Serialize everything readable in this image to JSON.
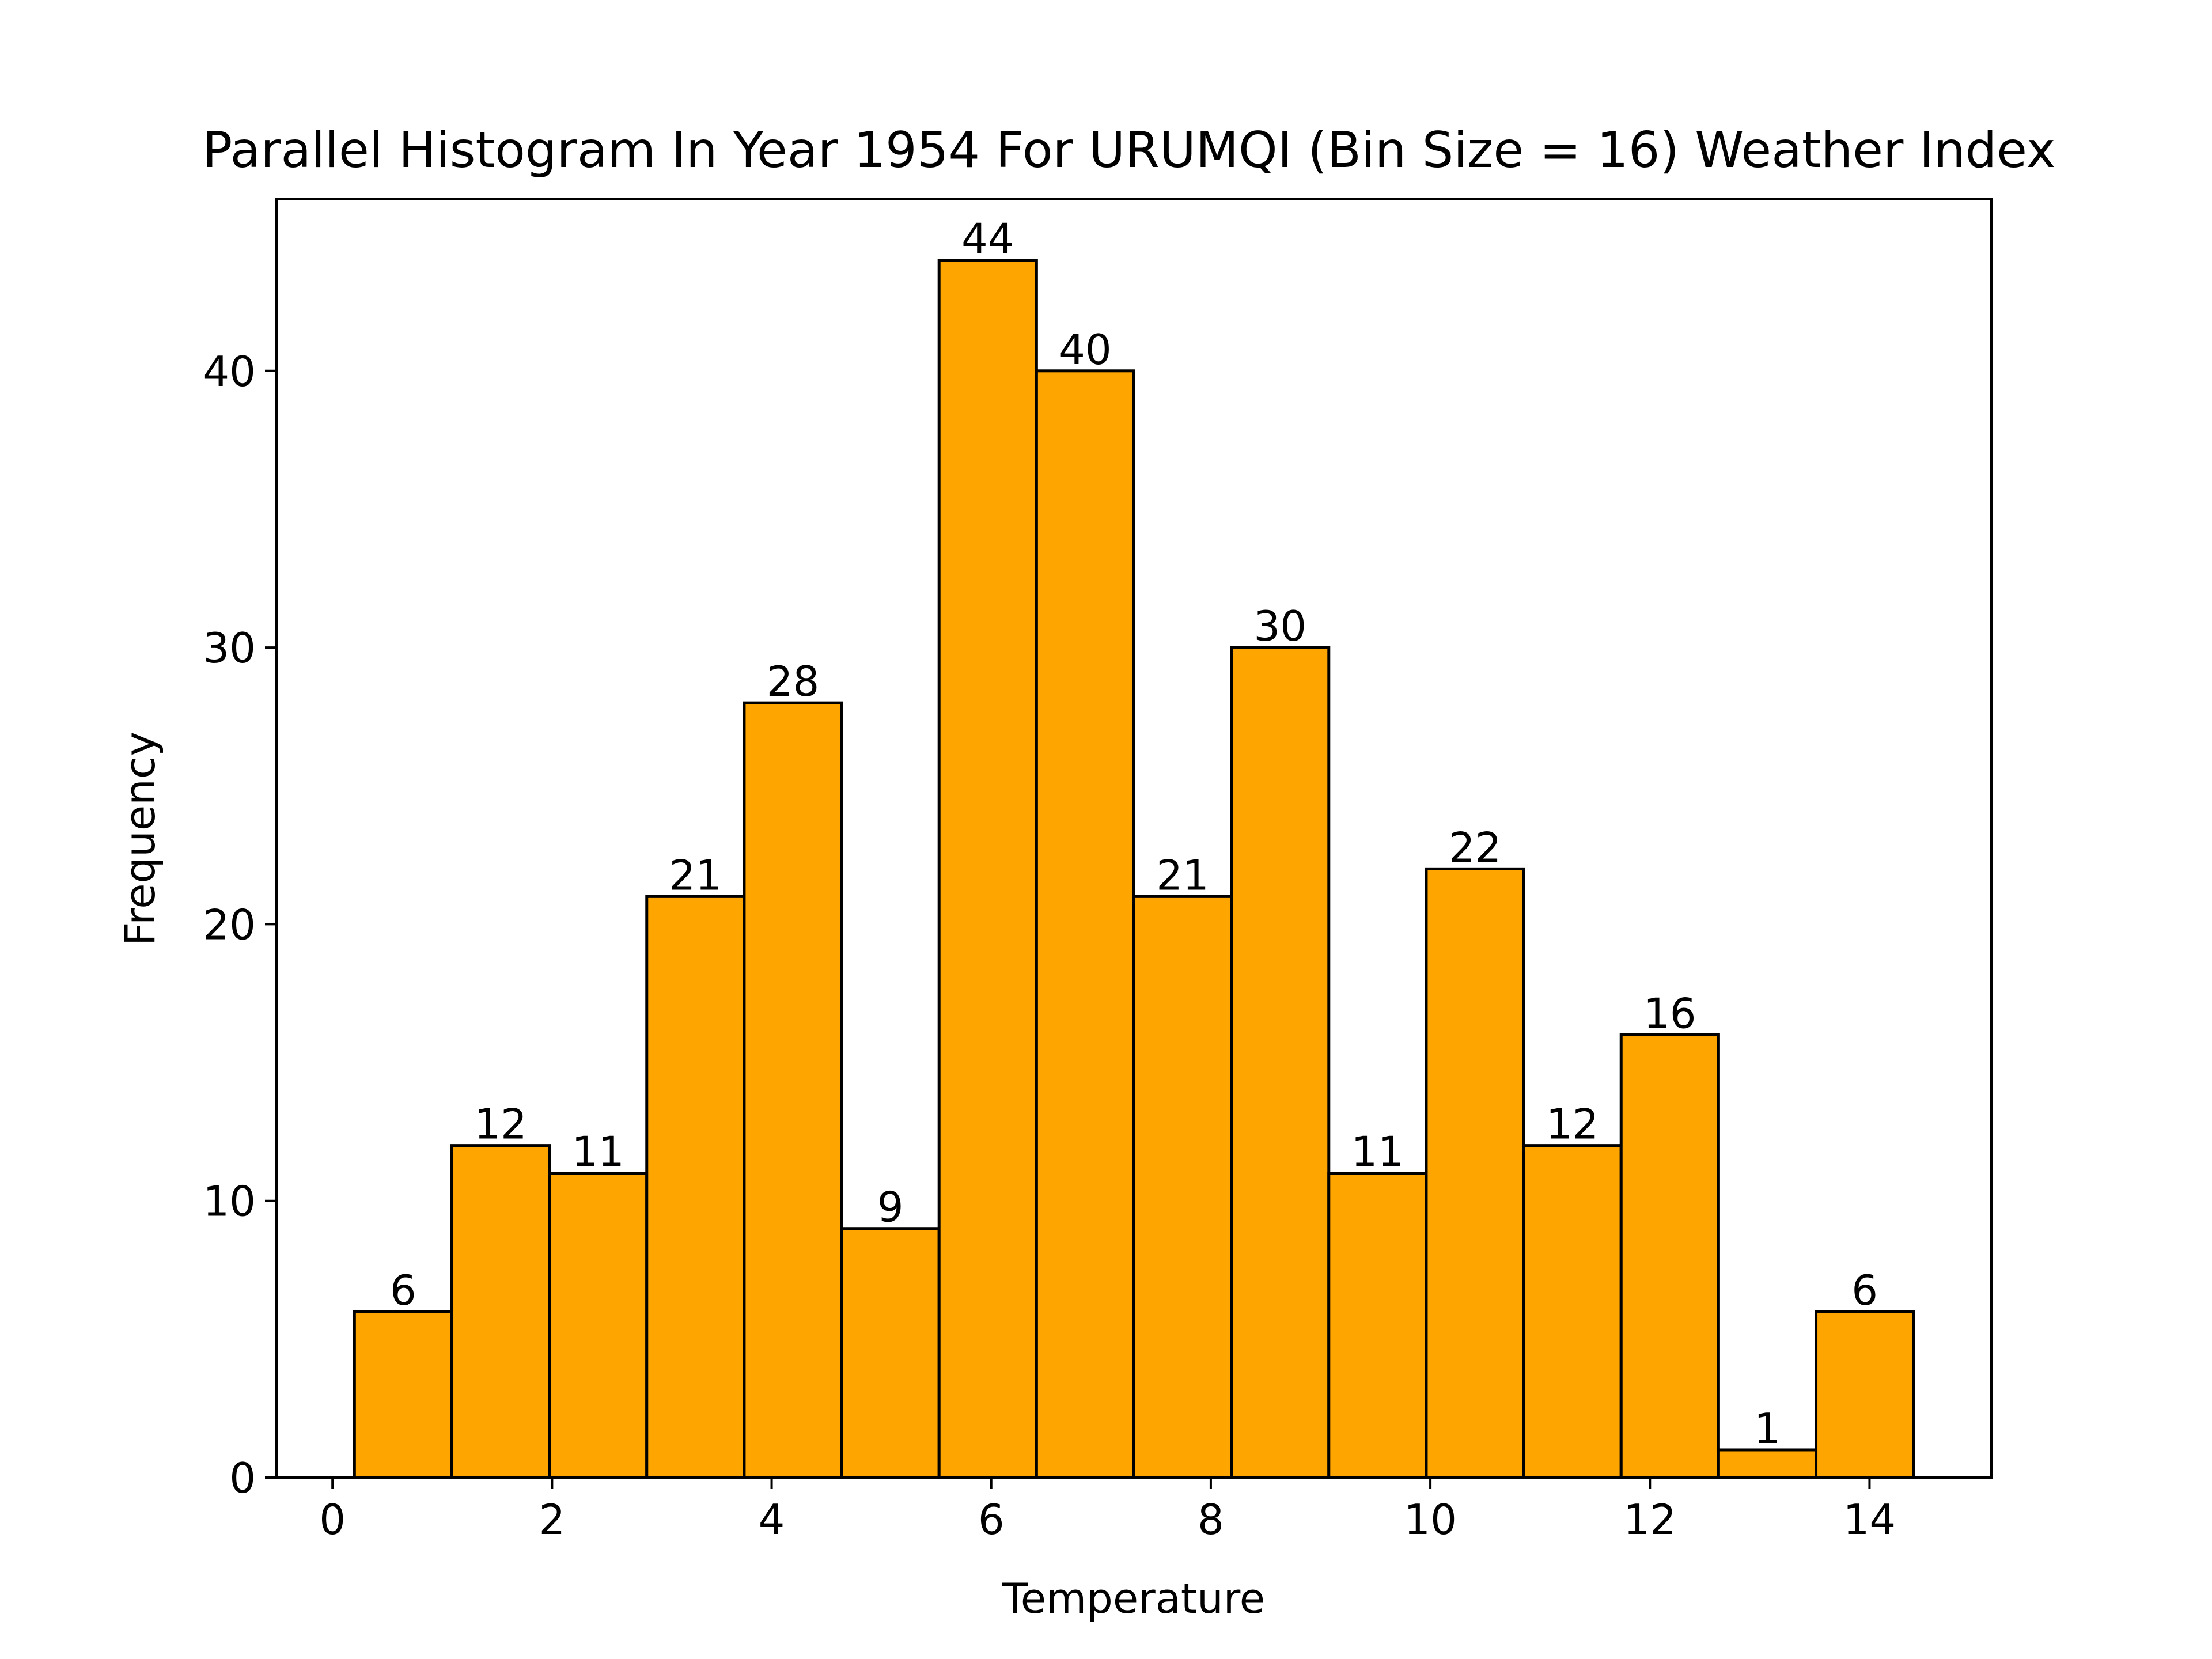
{
  "chart_data": {
    "type": "bar",
    "title": "Parallel Histogram In Year 1954 For URUMQI (Bin Size = 16) Weather Index",
    "xlabel": "Temperature",
    "ylabel": "Frequency",
    "bin_edges": [
      0.2,
      1.0875,
      1.975,
      2.8625,
      3.75,
      4.6375,
      5.525,
      6.4125,
      7.3,
      8.1875,
      9.075,
      9.9625,
      10.85,
      11.7375,
      12.625,
      13.5125,
      14.4
    ],
    "values": [
      6,
      12,
      11,
      21,
      28,
      9,
      44,
      40,
      21,
      30,
      11,
      22,
      12,
      16,
      1,
      6
    ],
    "value_labels": [
      "6",
      "12",
      "11",
      "21",
      "28",
      "9",
      "44",
      "40",
      "21",
      "30",
      "11",
      "22",
      "12",
      "16",
      "1",
      "6"
    ],
    "xlim": [
      -0.51,
      15.11
    ],
    "ylim": [
      0,
      46.2
    ],
    "xticks": [
      0,
      2,
      4,
      6,
      8,
      10,
      12,
      14
    ],
    "xtick_labels": [
      "0",
      "2",
      "4",
      "6",
      "8",
      "10",
      "12",
      "14"
    ],
    "yticks": [
      0,
      10,
      20,
      30,
      40
    ],
    "ytick_labels": [
      "0",
      "10",
      "20",
      "30",
      "40"
    ],
    "bar_color": "#ffa500",
    "edge_color": "#000000",
    "grid": false
  }
}
